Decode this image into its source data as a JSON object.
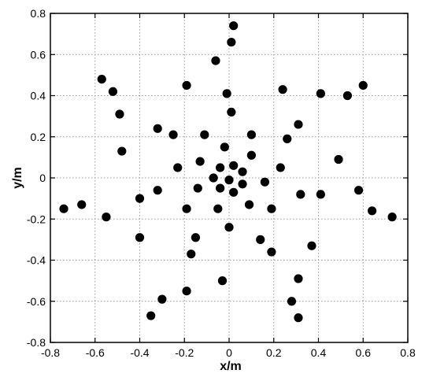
{
  "chart_data": {
    "type": "scatter",
    "title": "",
    "xlabel": "x/m",
    "ylabel": "y/m",
    "xlim": [
      -0.8,
      0.8
    ],
    "ylim": [
      -0.8,
      0.8
    ],
    "grid": true,
    "xticks": [
      -0.8,
      -0.6,
      -0.4,
      -0.2,
      0,
      0.2,
      0.4,
      0.6,
      0.8
    ],
    "yticks": [
      -0.8,
      -0.6,
      -0.4,
      -0.2,
      0,
      0.2,
      0.4,
      0.6,
      0.8
    ],
    "xtick_labels": [
      "-0.8",
      "-0.6",
      "-0.4",
      "-0.2",
      "0",
      "0.2",
      "0.4",
      "0.6",
      "0.8"
    ],
    "ytick_labels": [
      "-0.8",
      "-0.6",
      "-0.4",
      "-0.2",
      "0",
      "0.2",
      "0.4",
      "0.6",
      "0.8"
    ],
    "marker_color": "#000000",
    "points": [
      [
        0.02,
        0.74
      ],
      [
        0.01,
        0.66
      ],
      [
        -0.06,
        0.57
      ],
      [
        -0.01,
        0.41
      ],
      [
        0.01,
        0.32
      ],
      [
        -0.57,
        0.48
      ],
      [
        -0.52,
        0.42
      ],
      [
        -0.49,
        0.31
      ],
      [
        -0.19,
        0.45
      ],
      [
        -0.32,
        0.24
      ],
      [
        -0.25,
        0.21
      ],
      [
        -0.11,
        0.21
      ],
      [
        -0.48,
        0.13
      ],
      [
        -0.23,
        0.05
      ],
      [
        -0.13,
        0.08
      ],
      [
        -0.02,
        0.15
      ],
      [
        0.02,
        0.06
      ],
      [
        -0.04,
        0.05
      ],
      [
        0.06,
        0.03
      ],
      [
        -0.07,
        0.0
      ],
      [
        0.0,
        -0.01
      ],
      [
        0.06,
        -0.03
      ],
      [
        -0.04,
        -0.05
      ],
      [
        0.02,
        -0.07
      ],
      [
        0.24,
        0.43
      ],
      [
        0.41,
        0.41
      ],
      [
        0.53,
        0.4
      ],
      [
        0.6,
        0.45
      ],
      [
        0.31,
        0.26
      ],
      [
        0.26,
        0.19
      ],
      [
        0.1,
        0.21
      ],
      [
        0.1,
        0.11
      ],
      [
        0.23,
        0.05
      ],
      [
        0.49,
        0.09
      ],
      [
        0.16,
        -0.02
      ],
      [
        -0.74,
        -0.15
      ],
      [
        -0.66,
        -0.13
      ],
      [
        -0.55,
        -0.19
      ],
      [
        -0.4,
        -0.1
      ],
      [
        -0.32,
        -0.06
      ],
      [
        -0.14,
        -0.05
      ],
      [
        -0.19,
        -0.15
      ],
      [
        -0.05,
        -0.15
      ],
      [
        0.09,
        -0.13
      ],
      [
        0.19,
        -0.15
      ],
      [
        0.32,
        -0.08
      ],
      [
        0.41,
        -0.08
      ],
      [
        0.58,
        -0.06
      ],
      [
        0.64,
        -0.16
      ],
      [
        0.73,
        -0.19
      ],
      [
        -0.4,
        -0.29
      ],
      [
        -0.15,
        -0.29
      ],
      [
        -0.17,
        -0.37
      ],
      [
        0.0,
        -0.24
      ],
      [
        0.14,
        -0.3
      ],
      [
        0.19,
        -0.36
      ],
      [
        0.37,
        -0.33
      ],
      [
        -0.03,
        -0.5
      ],
      [
        -0.19,
        -0.55
      ],
      [
        -0.3,
        -0.59
      ],
      [
        -0.35,
        -0.67
      ],
      [
        0.31,
        -0.49
      ],
      [
        0.28,
        -0.6
      ],
      [
        0.31,
        -0.68
      ]
    ]
  }
}
